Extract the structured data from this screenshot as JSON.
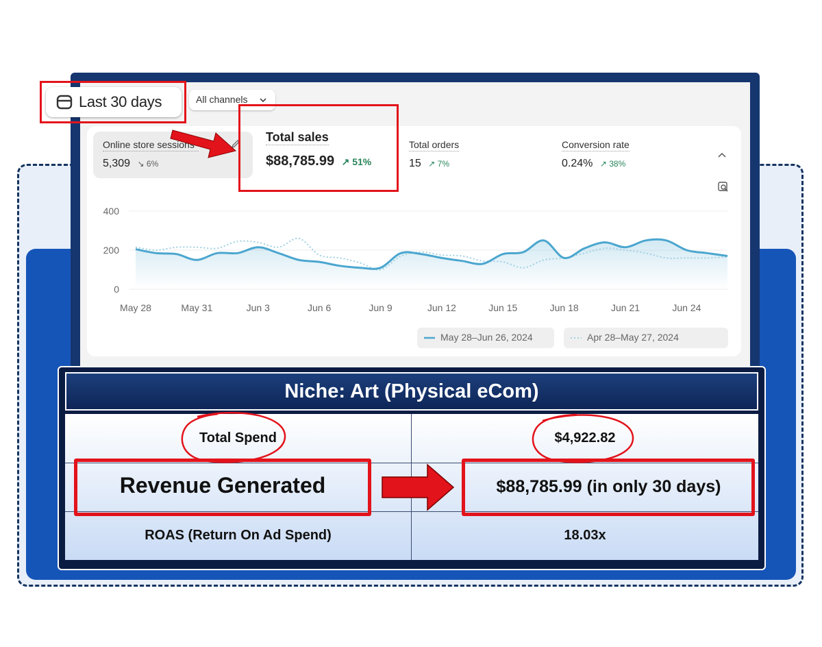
{
  "toolbar": {
    "date_range_label": "Last 30 days",
    "channels_label": "All channels"
  },
  "metrics": [
    {
      "label": "Online store sessions",
      "value": "5,309",
      "delta": "6%"
    },
    {
      "label": "Total sales",
      "value": "$88,785.99",
      "delta": "51%"
    },
    {
      "label": "Total orders",
      "value": "15",
      "delta": "7%"
    },
    {
      "label": "Conversion rate",
      "value": "0.24%",
      "delta": "38%"
    }
  ],
  "chart_data": {
    "type": "line",
    "x": [
      "May 28",
      "May 29",
      "May 30",
      "May 31",
      "Jun 1",
      "Jun 2",
      "Jun 3",
      "Jun 4",
      "Jun 5",
      "Jun 6",
      "Jun 7",
      "Jun 8",
      "Jun 9",
      "Jun 10",
      "Jun 11",
      "Jun 12",
      "Jun 13",
      "Jun 14",
      "Jun 15",
      "Jun 16",
      "Jun 17",
      "Jun 18",
      "Jun 19",
      "Jun 20",
      "Jun 21",
      "Jun 22",
      "Jun 23",
      "Jun 24",
      "Jun 25",
      "Jun 26"
    ],
    "x_tick_labels": [
      "May 28",
      "May 31",
      "Jun 3",
      "Jun 6",
      "Jun 9",
      "Jun 12",
      "Jun 15",
      "Jun 18",
      "Jun 21",
      "Jun 24"
    ],
    "y_ticks": [
      "400",
      "200",
      "0"
    ],
    "ylim": [
      0,
      400
    ],
    "series": [
      {
        "name": "May 28–Jun 26, 2024",
        "values": [
          205,
          185,
          180,
          150,
          185,
          185,
          215,
          185,
          150,
          140,
          120,
          110,
          110,
          185,
          180,
          160,
          145,
          130,
          180,
          190,
          250,
          160,
          210,
          240,
          215,
          250,
          250,
          200,
          185,
          170
        ]
      },
      {
        "name": "Apr 28–May 27, 2024",
        "values": [
          215,
          200,
          215,
          215,
          210,
          245,
          240,
          215,
          260,
          175,
          160,
          135,
          100,
          170,
          190,
          175,
          170,
          145,
          140,
          110,
          150,
          160,
          185,
          210,
          200,
          185,
          160,
          160,
          160,
          165
        ]
      }
    ]
  },
  "niche_table": {
    "title": "Niche: Art (Physical eCom)",
    "rows": [
      {
        "label": "Total Spend",
        "value": "$4,922.82"
      },
      {
        "label": "Revenue Generated",
        "value": "$88,785.99 (in only 30 days)"
      },
      {
        "label": "ROAS (Return On Ad Spend)",
        "value": "18.03x"
      }
    ]
  },
  "colors": {
    "highlight_red": "#e3131b",
    "navy": "#0b1c43",
    "brand_blue": "#1655b8",
    "series_current": "#4ba6cf",
    "series_previous": "#9fd0e3",
    "delta_up": "#29845a"
  }
}
